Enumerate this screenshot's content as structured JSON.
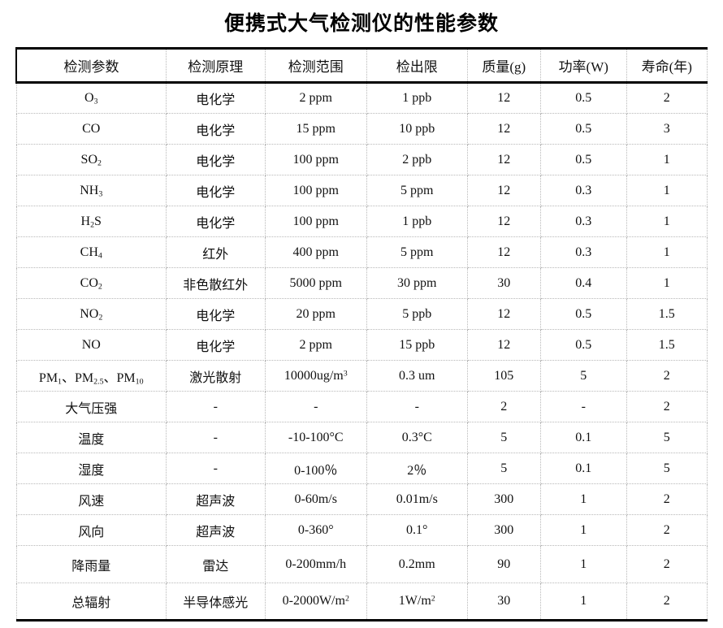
{
  "page": {
    "title": "便携式大气检测仪的性能参数",
    "background_color": "#ffffff",
    "border_color": "#000000",
    "grid_color": "#b8b8b8"
  },
  "table": {
    "headers": [
      "检测参数",
      "检测原理",
      "检测范围",
      "检出限",
      "质量(g)",
      "功率(W)",
      "寿命(年)"
    ],
    "rows": [
      [
        "O~3~",
        "电化学",
        "2 ppm",
        "1 ppb",
        "12",
        "0.5",
        "2"
      ],
      [
        "CO",
        "电化学",
        "15 ppm",
        "10 ppb",
        "12",
        "0.5",
        "3"
      ],
      [
        "SO~2~",
        "电化学",
        "100 ppm",
        "2 ppb",
        "12",
        "0.5",
        "1"
      ],
      [
        "NH~3~",
        "电化学",
        "100 ppm",
        "5 ppm",
        "12",
        "0.3",
        "1"
      ],
      [
        "H~2~S",
        "电化学",
        "100 ppm",
        "1 ppb",
        "12",
        "0.3",
        "1"
      ],
      [
        "CH~4~",
        "红外",
        "400 ppm",
        "5 ppm",
        "12",
        "0.3",
        "1"
      ],
      [
        "CO~2~",
        "非色散红外",
        "5000 ppm",
        "30 ppm",
        "30",
        "0.4",
        "1"
      ],
      [
        "NO~2~",
        "电化学",
        "20 ppm",
        "5 ppb",
        "12",
        "0.5",
        "1.5"
      ],
      [
        "NO",
        "电化学",
        "2 ppm",
        "15 ppb",
        "12",
        "0.5",
        "1.5"
      ],
      [
        "PM~1~、PM~2.5~、PM~10~",
        "激光散射",
        "10000ug/m^3^",
        "0.3 um",
        "105",
        "5",
        "2"
      ],
      [
        "大气压强",
        "-",
        "-",
        "-",
        "2",
        "-",
        "2"
      ],
      [
        "温度",
        "-",
        "-10-100°C",
        "0.3°C",
        "5",
        "0.1",
        "5"
      ],
      [
        "湿度",
        "-",
        "0-100％",
        "2％",
        "5",
        "0.1",
        "5"
      ],
      [
        "风速",
        "超声波",
        "0-60m/s",
        "0.01m/s",
        "300",
        "1",
        "2"
      ],
      [
        "风向",
        "超声波",
        "0-360°",
        "0.1°",
        "300",
        "1",
        "2"
      ],
      [
        "降雨量",
        "雷达",
        "0-200mm/h",
        "0.2mm",
        "90",
        "1",
        "2"
      ],
      [
        "总辐射",
        "半导体感光",
        "0-2000W/m^2^",
        "1W/m^2^",
        "30",
        "1",
        "2"
      ]
    ]
  }
}
